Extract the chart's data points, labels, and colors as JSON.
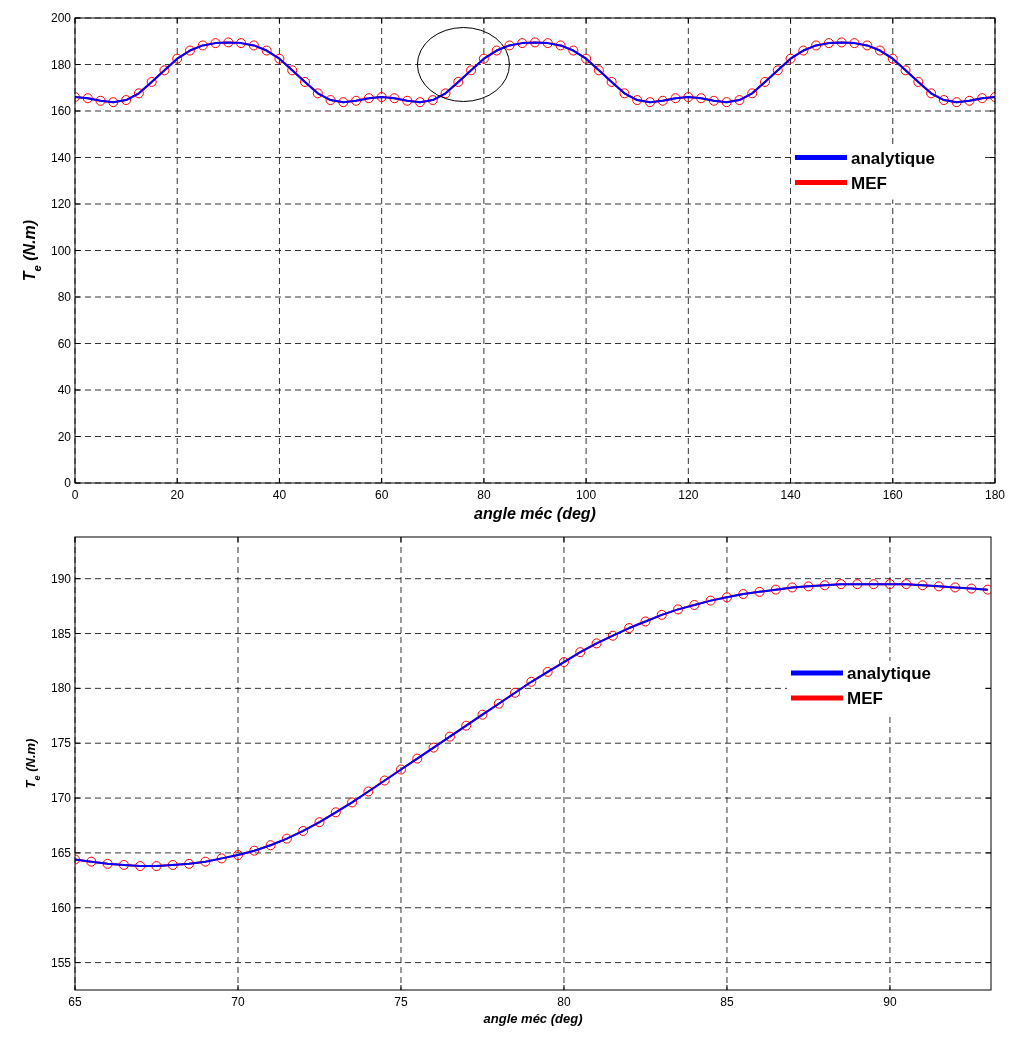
{
  "chart_data": [
    {
      "type": "line",
      "xlabel": "angle méc (deg)",
      "ylabel": "T$_{e}$ (N.m)",
      "xlim": [
        0,
        180
      ],
      "xticks": [
        0,
        20,
        40,
        60,
        80,
        100,
        120,
        140,
        160,
        180
      ],
      "ylim": [
        0,
        200
      ],
      "yticks": [
        0,
        20,
        40,
        60,
        80,
        100,
        120,
        140,
        160,
        180,
        200
      ],
      "grid": true,
      "legend": "right",
      "line_style": "solid",
      "x": [
        0,
        2.5,
        5,
        7.5,
        10,
        12.5,
        15,
        17.5,
        20,
        22.5,
        25,
        27.5,
        30,
        32.5,
        35,
        37.5,
        40,
        42.5,
        45,
        47.5,
        50,
        52.5,
        55,
        57.5,
        60,
        62.5,
        65,
        67.5,
        70,
        72.5,
        75,
        77.5,
        80,
        82.5,
        85,
        87.5,
        90,
        92.5,
        95,
        97.5,
        100,
        102.5,
        105,
        107.5,
        110,
        112.5,
        115,
        117.5,
        120,
        122.5,
        125,
        127.5,
        130,
        132.5,
        135,
        137.5,
        140,
        142.5,
        145,
        147.5,
        150,
        152.5,
        155,
        157.5,
        160,
        162.5,
        165,
        167.5,
        170,
        172.5,
        175,
        177.5,
        180
      ],
      "series": [
        {
          "name": "MEF",
          "color": "#ff0000",
          "marker": "circle",
          "values": [
            166,
            165.5,
            164.4,
            163.8,
            164.7,
            167.6,
            172.5,
            177.5,
            182.5,
            186,
            188.2,
            189.2,
            189.5,
            189.2,
            188.2,
            186,
            182.5,
            177.5,
            172.5,
            167.6,
            164.7,
            163.8,
            164.4,
            165.5,
            166,
            165.5,
            164.4,
            163.8,
            164.7,
            167.6,
            172.5,
            177.5,
            182.5,
            186,
            188.2,
            189.2,
            189.5,
            189.2,
            188.2,
            186,
            182.5,
            177.5,
            172.5,
            167.6,
            164.7,
            163.8,
            164.4,
            165.5,
            166,
            165.5,
            164.4,
            163.8,
            164.7,
            167.6,
            172.5,
            177.5,
            182.5,
            186,
            188.2,
            189.2,
            189.5,
            189.2,
            188.2,
            186,
            182.5,
            177.5,
            172.5,
            167.6,
            164.7,
            163.8,
            164.4,
            165.5,
            166
          ]
        },
        {
          "name": "analytique",
          "color": "#0000ff",
          "values": [
            166,
            165.5,
            164.4,
            163.8,
            164.7,
            167.6,
            172.5,
            177.5,
            182.5,
            186,
            188.2,
            189.2,
            189.5,
            189.2,
            188.2,
            186,
            182.5,
            177.5,
            172.5,
            167.6,
            164.7,
            163.8,
            164.4,
            165.5,
            166,
            165.5,
            164.4,
            163.8,
            164.7,
            167.6,
            172.5,
            177.5,
            182.5,
            186,
            188.2,
            189.2,
            189.5,
            189.2,
            188.2,
            186,
            182.5,
            177.5,
            172.5,
            167.6,
            164.7,
            163.8,
            164.4,
            165.5,
            166,
            165.5,
            164.4,
            163.8,
            164.7,
            167.6,
            172.5,
            177.5,
            182.5,
            186,
            188.2,
            189.2,
            189.5,
            189.2,
            188.2,
            186,
            182.5,
            177.5,
            172.5,
            167.6,
            164.7,
            163.8,
            164.4,
            165.5,
            166
          ]
        }
      ]
    },
    {
      "type": "line",
      "xlabel": "angle méc (deg)",
      "ylabel": "T$_{e}$ (N.m)",
      "xlim": [
        65,
        93.1
      ],
      "xticks": [
        65,
        70,
        75,
        80,
        85,
        90
      ],
      "ylim": [
        152.5,
        193.8
      ],
      "yticks": [
        155,
        160,
        165,
        170,
        175,
        180,
        185,
        190
      ],
      "grid": true,
      "legend": "right",
      "line_style": "solid",
      "x": [
        65,
        65.5,
        66,
        66.5,
        67,
        67.5,
        68,
        68.5,
        69,
        69.5,
        70,
        70.5,
        71,
        71.5,
        72,
        72.5,
        73,
        73.5,
        74,
        74.5,
        75,
        75.5,
        76,
        76.5,
        77,
        77.5,
        78,
        78.5,
        79,
        79.5,
        80,
        80.5,
        81,
        81.5,
        82,
        82.5,
        83,
        83.5,
        84,
        84.5,
        85,
        85.5,
        86,
        86.5,
        87,
        87.5,
        88,
        88.5,
        89,
        89.5,
        90,
        90.5,
        91,
        91.5,
        92,
        92.5,
        93
      ],
      "series": [
        {
          "name": "MEF",
          "color": "#ff0000",
          "marker": "circle",
          "values": [
            164.4,
            164.2,
            164,
            163.9,
            163.8,
            163.8,
            163.9,
            164,
            164.2,
            164.5,
            164.8,
            165.2,
            165.7,
            166.3,
            167,
            167.8,
            168.7,
            169.6,
            170.6,
            171.6,
            172.6,
            173.6,
            174.6,
            175.6,
            176.6,
            177.6,
            178.6,
            179.6,
            180.6,
            181.5,
            182.4,
            183.3,
            184.1,
            184.8,
            185.5,
            186.1,
            186.7,
            187.2,
            187.6,
            188,
            188.3,
            188.6,
            188.8,
            189,
            189.2,
            189.3,
            189.4,
            189.5,
            189.5,
            189.5,
            189.5,
            189.5,
            189.4,
            189.3,
            189.2,
            189.1,
            189
          ]
        },
        {
          "name": "analytique",
          "color": "#0000ff",
          "values": [
            164.4,
            164.2,
            164,
            163.9,
            163.8,
            163.8,
            163.9,
            164,
            164.2,
            164.5,
            164.8,
            165.2,
            165.7,
            166.3,
            167,
            167.8,
            168.7,
            169.6,
            170.6,
            171.6,
            172.6,
            173.6,
            174.6,
            175.6,
            176.6,
            177.6,
            178.6,
            179.6,
            180.6,
            181.5,
            182.4,
            183.3,
            184.1,
            184.8,
            185.5,
            186.1,
            186.7,
            187.2,
            187.6,
            188,
            188.3,
            188.6,
            188.8,
            189,
            189.2,
            189.3,
            189.4,
            189.5,
            189.5,
            189.5,
            189.5,
            189.5,
            189.4,
            189.3,
            189.2,
            189.1,
            189
          ]
        }
      ]
    }
  ]
}
